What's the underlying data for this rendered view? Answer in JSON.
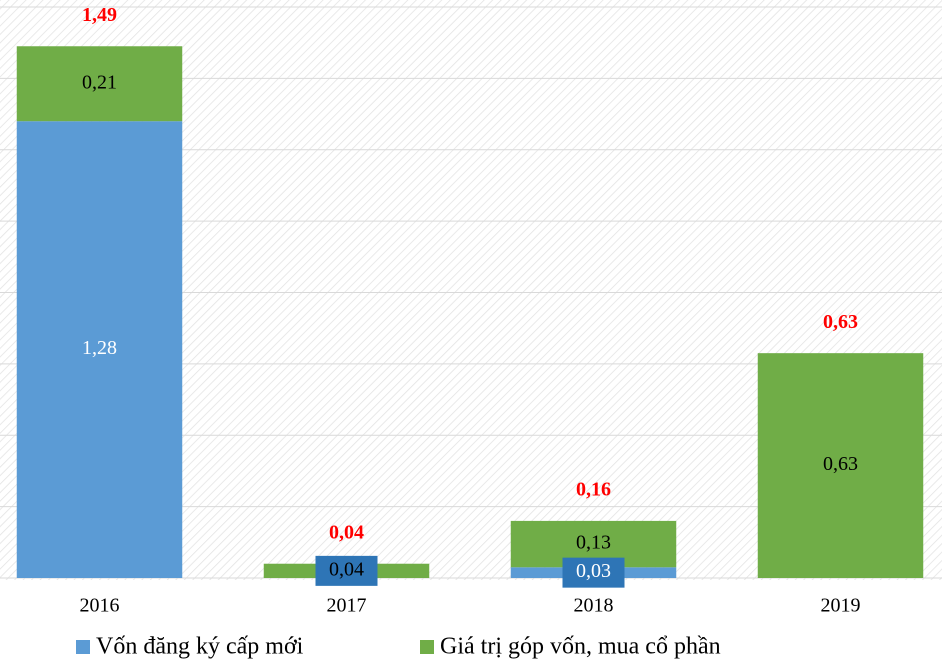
{
  "chart_data": {
    "type": "bar",
    "stacked": true,
    "categories": [
      "2016",
      "2017",
      "2018",
      "2019"
    ],
    "series": [
      {
        "name": "Vốn đăng ký cấp mới",
        "color": "#5b9bd5",
        "label_color": "#ffffff",
        "values": [
          1.28,
          null,
          0.03,
          null
        ],
        "value_labels": [
          "1,28",
          null,
          "0,03",
          null
        ]
      },
      {
        "name": "Giá trị góp vốn, mua cổ phần",
        "color": "#70ad47",
        "label_color": "#000000",
        "values": [
          0.21,
          0.04,
          0.13,
          0.63
        ],
        "value_labels": [
          "0,21",
          "0,04",
          "0,13",
          "0,63"
        ]
      }
    ],
    "totals": [
      1.49,
      0.04,
      0.16,
      0.63
    ],
    "total_labels": [
      "1,49",
      "0,04",
      "0,16",
      "0,63"
    ],
    "total_color": "#ff0000",
    "ylim": [
      0,
      1.6
    ],
    "yticks": [
      0,
      0.2,
      0.4,
      0.6,
      0.8,
      1,
      1.2,
      1.4,
      1.6
    ],
    "grid": true,
    "legend": "bottom"
  }
}
